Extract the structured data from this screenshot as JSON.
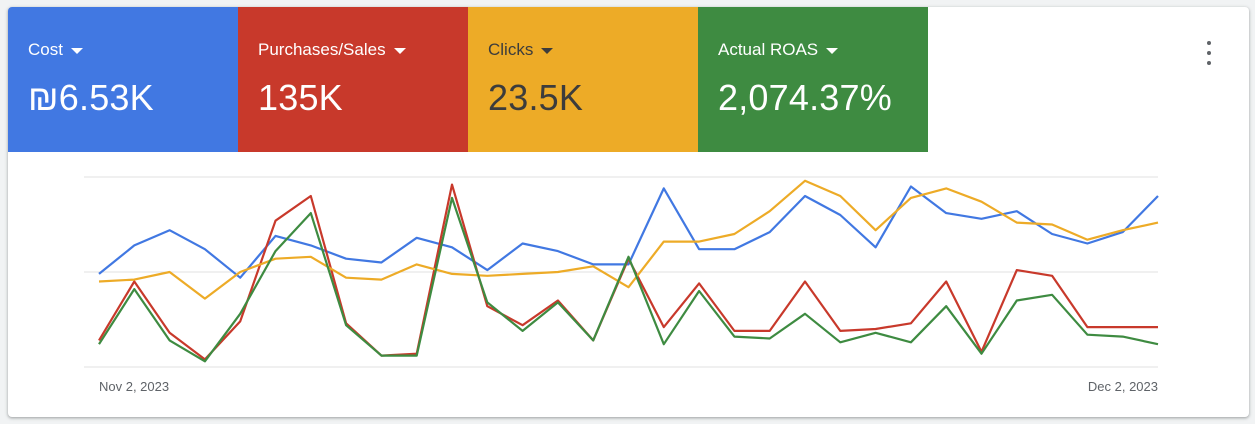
{
  "tiles": [
    {
      "label": "Cost",
      "value": "₪6.53K",
      "color": "#4178e2"
    },
    {
      "label": "Purchases/Sales",
      "value": "135K",
      "color": "#c8392b"
    },
    {
      "label": "Clicks",
      "value": "23.5K",
      "color": "#edab27"
    },
    {
      "label": "Actual ROAS",
      "value": "2,074.37%",
      "color": "#3e8b41"
    }
  ],
  "menu_icon": "more-vert-icon",
  "chart_data": {
    "type": "line",
    "x": [
      "2023-11-02",
      "2023-11-03",
      "2023-11-04",
      "2023-11-05",
      "2023-11-06",
      "2023-11-07",
      "2023-11-08",
      "2023-11-09",
      "2023-11-10",
      "2023-11-11",
      "2023-11-12",
      "2023-11-13",
      "2023-11-14",
      "2023-11-15",
      "2023-11-16",
      "2023-11-17",
      "2023-11-18",
      "2023-11-19",
      "2023-11-20",
      "2023-11-21",
      "2023-11-22",
      "2023-11-23",
      "2023-11-24",
      "2023-11-25",
      "2023-11-26",
      "2023-11-27",
      "2023-11-28",
      "2023-11-29",
      "2023-11-30",
      "2023-12-01",
      "2023-12-02"
    ],
    "x_tick_labels": [
      "Nov 2, 2023",
      "Dec 2, 2023"
    ],
    "y_axis": "normalized per series, unlabeled",
    "ylim": [
      0,
      1
    ],
    "grid": "horizontal",
    "series": [
      {
        "metric": "Cost",
        "color": "#4178e2",
        "values": [
          0.49,
          0.64,
          0.72,
          0.62,
          0.47,
          0.69,
          0.64,
          0.57,
          0.55,
          0.68,
          0.63,
          0.51,
          0.65,
          0.61,
          0.54,
          0.54,
          0.94,
          0.62,
          0.62,
          0.71,
          0.9,
          0.8,
          0.63,
          0.95,
          0.81,
          0.78,
          0.82,
          0.7,
          0.65,
          0.71,
          0.9
        ]
      },
      {
        "metric": "Purchases/Sales",
        "color": "#c8392b",
        "values": [
          0.14,
          0.45,
          0.18,
          0.04,
          0.24,
          0.77,
          0.9,
          0.23,
          0.06,
          0.07,
          0.96,
          0.32,
          0.22,
          0.35,
          0.14,
          0.57,
          0.21,
          0.44,
          0.19,
          0.19,
          0.45,
          0.19,
          0.2,
          0.23,
          0.45,
          0.08,
          0.51,
          0.48,
          0.21,
          0.21,
          0.21
        ]
      },
      {
        "metric": "Clicks",
        "color": "#edab27",
        "values": [
          0.45,
          0.46,
          0.5,
          0.36,
          0.5,
          0.57,
          0.58,
          0.47,
          0.46,
          0.54,
          0.49,
          0.48,
          0.49,
          0.5,
          0.53,
          0.42,
          0.66,
          0.66,
          0.7,
          0.82,
          0.98,
          0.9,
          0.72,
          0.89,
          0.94,
          0.87,
          0.76,
          0.75,
          0.67,
          0.72,
          0.76
        ]
      },
      {
        "metric": "Actual ROAS",
        "color": "#3e8b41",
        "values": [
          0.12,
          0.41,
          0.14,
          0.03,
          0.28,
          0.61,
          0.81,
          0.22,
          0.06,
          0.06,
          0.89,
          0.34,
          0.19,
          0.34,
          0.14,
          0.58,
          0.12,
          0.4,
          0.16,
          0.15,
          0.28,
          0.13,
          0.18,
          0.13,
          0.32,
          0.07,
          0.35,
          0.38,
          0.17,
          0.16,
          0.12
        ]
      }
    ]
  }
}
